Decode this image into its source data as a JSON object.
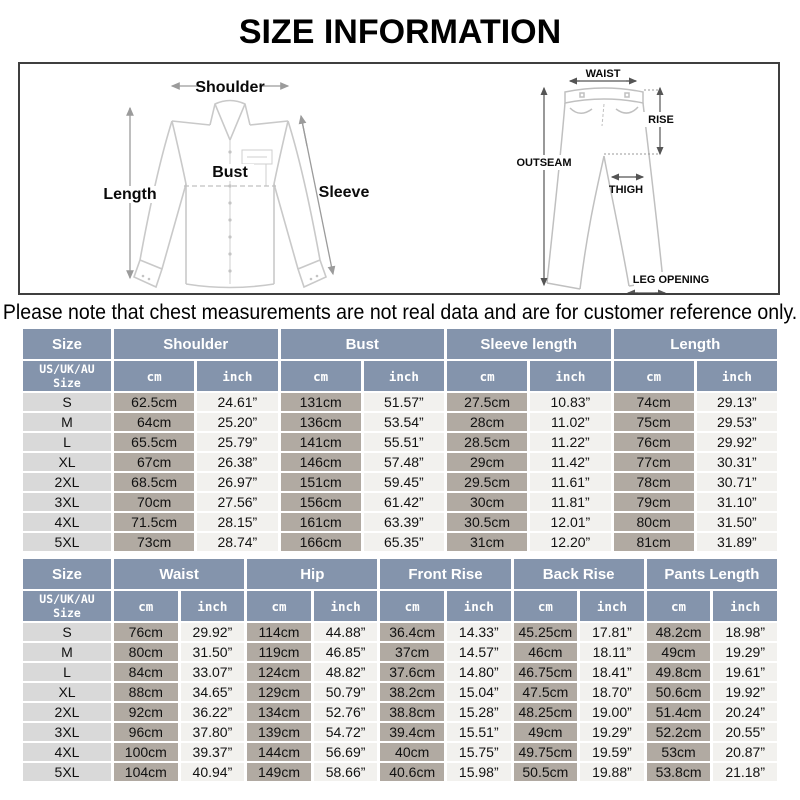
{
  "page": {
    "title": "SIZE INFORMATION",
    "note": "Please note that chest measurements are not real data and are for customer reference only."
  },
  "colors": {
    "header_bg": "#8494ac",
    "size_column_bg": "#d9d9d9",
    "cm_column_bg": "#b1aaa2",
    "inch_column_bg": "#f2f1ee",
    "box_border": "#3f3f3f"
  },
  "diagrams": {
    "shirt": {
      "shoulder": "Shoulder",
      "length": "Length",
      "bust": "Bust",
      "sleeve": "Sleeve"
    },
    "pants": {
      "waist": "WAIST",
      "rise": "RISE",
      "outseam": "OUTSEAM",
      "thigh": "THIGH",
      "leg_opening": "LEG OPENING"
    }
  },
  "tables": [
    {
      "name": "shirt-size-table",
      "size_header": "Size",
      "size_subheader": "US/UK/AU Size",
      "unit_cm": "cm",
      "unit_inch": "inch",
      "groups": [
        "Shoulder",
        "Bust",
        "Sleeve length",
        "Length"
      ],
      "rows": [
        [
          "S",
          "62.5cm",
          "24.61”",
          "131cm",
          "51.57”",
          "27.5cm",
          "10.83”",
          "74cm",
          "29.13”"
        ],
        [
          "M",
          "64cm",
          "25.20”",
          "136cm",
          "53.54”",
          "28cm",
          "11.02”",
          "75cm",
          "29.53”"
        ],
        [
          "L",
          "65.5cm",
          "25.79”",
          "141cm",
          "55.51”",
          "28.5cm",
          "11.22”",
          "76cm",
          "29.92”"
        ],
        [
          "XL",
          "67cm",
          "26.38”",
          "146cm",
          "57.48”",
          "29cm",
          "11.42”",
          "77cm",
          "30.31”"
        ],
        [
          "2XL",
          "68.5cm",
          "26.97”",
          "151cm",
          "59.45”",
          "29.5cm",
          "11.61”",
          "78cm",
          "30.71”"
        ],
        [
          "3XL",
          "70cm",
          "27.56”",
          "156cm",
          "61.42”",
          "30cm",
          "11.81”",
          "79cm",
          "31.10”"
        ],
        [
          "4XL",
          "71.5cm",
          "28.15”",
          "161cm",
          "63.39”",
          "30.5cm",
          "12.01”",
          "80cm",
          "31.50”"
        ],
        [
          "5XL",
          "73cm",
          "28.74”",
          "166cm",
          "65.35”",
          "31cm",
          "12.20”",
          "81cm",
          "31.89”"
        ]
      ]
    },
    {
      "name": "pants-size-table",
      "size_header": "Size",
      "size_subheader": "US/UK/AU Size",
      "unit_cm": "cm",
      "unit_inch": "inch",
      "groups": [
        "Waist",
        "Hip",
        "Front Rise",
        "Back Rise",
        "Pants Length"
      ],
      "rows": [
        [
          "S",
          "76cm",
          "29.92”",
          "114cm",
          "44.88”",
          "36.4cm",
          "14.33”",
          "45.25cm",
          "17.81”",
          "48.2cm",
          "18.98”"
        ],
        [
          "M",
          "80cm",
          "31.50”",
          "119cm",
          "46.85”",
          "37cm",
          "14.57”",
          "46cm",
          "18.11”",
          "49cm",
          "19.29”"
        ],
        [
          "L",
          "84cm",
          "33.07”",
          "124cm",
          "48.82”",
          "37.6cm",
          "14.80”",
          "46.75cm",
          "18.41”",
          "49.8cm",
          "19.61”"
        ],
        [
          "XL",
          "88cm",
          "34.65”",
          "129cm",
          "50.79”",
          "38.2cm",
          "15.04”",
          "47.5cm",
          "18.70”",
          "50.6cm",
          "19.92”"
        ],
        [
          "2XL",
          "92cm",
          "36.22”",
          "134cm",
          "52.76”",
          "38.8cm",
          "15.28”",
          "48.25cm",
          "19.00”",
          "51.4cm",
          "20.24”"
        ],
        [
          "3XL",
          "96cm",
          "37.80”",
          "139cm",
          "54.72”",
          "39.4cm",
          "15.51”",
          "49cm",
          "19.29”",
          "52.2cm",
          "20.55”"
        ],
        [
          "4XL",
          "100cm",
          "39.37”",
          "144cm",
          "56.69”",
          "40cm",
          "15.75”",
          "49.75cm",
          "19.59”",
          "53cm",
          "20.87”"
        ],
        [
          "5XL",
          "104cm",
          "40.94”",
          "149cm",
          "58.66”",
          "40.6cm",
          "15.98”",
          "50.5cm",
          "19.88”",
          "53.8cm",
          "21.18”"
        ]
      ]
    }
  ]
}
